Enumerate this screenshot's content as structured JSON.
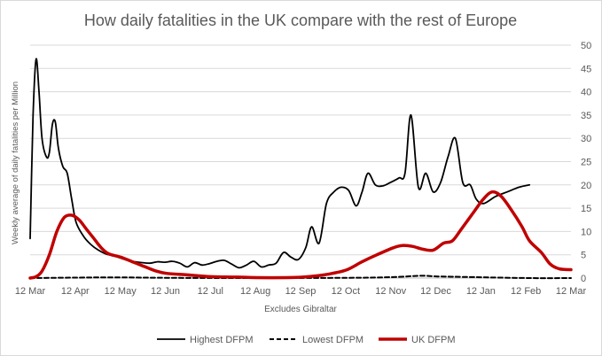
{
  "chart_data": {
    "type": "line",
    "title": "How daily fatalities in the UK compare with the rest of Europe",
    "xlabel": "Excludes Gibraltar",
    "ylabel": "Weekly average of daily fatalities per Million",
    "y_axis_position": "right",
    "ylim": [
      0,
      50
    ],
    "yticks": [
      0,
      5,
      10,
      15,
      20,
      25,
      30,
      35,
      40,
      45,
      50
    ],
    "xlim": [
      "2020-03-12",
      "2021-03-12"
    ],
    "xticks": [
      "12 Mar",
      "12 Apr",
      "12 May",
      "12 Jun",
      "12 Jul",
      "12 Aug",
      "12 Sep",
      "12 Oct",
      "12 Nov",
      "12 Dec",
      "12 Jan",
      "12 Feb",
      "12 Mar"
    ],
    "grid": true,
    "legend": "bottom",
    "series": [
      {
        "name": "Highest DFPM",
        "color": "#000000",
        "style": "solid",
        "points": [
          [
            "2020-03-12",
            8.5
          ],
          [
            "2020-03-14",
            35
          ],
          [
            "2020-03-16",
            47
          ],
          [
            "2020-03-18",
            40
          ],
          [
            "2020-03-20",
            30
          ],
          [
            "2020-03-23",
            26
          ],
          [
            "2020-03-25",
            27
          ],
          [
            "2020-03-27",
            33
          ],
          [
            "2020-03-29",
            33.5
          ],
          [
            "2020-03-31",
            28
          ],
          [
            "2020-04-03",
            24
          ],
          [
            "2020-04-06",
            22.5
          ],
          [
            "2020-04-09",
            17
          ],
          [
            "2020-04-12",
            12
          ],
          [
            "2020-04-17",
            9
          ],
          [
            "2020-04-22",
            7.2
          ],
          [
            "2020-04-27",
            6
          ],
          [
            "2020-05-02",
            5.2
          ],
          [
            "2020-05-07",
            4.8
          ],
          [
            "2020-05-12",
            4.3
          ],
          [
            "2020-05-17",
            3.8
          ],
          [
            "2020-05-22",
            3.5
          ],
          [
            "2020-05-27",
            3.3
          ],
          [
            "2020-06-01",
            3.2
          ],
          [
            "2020-06-06",
            3.5
          ],
          [
            "2020-06-11",
            3.4
          ],
          [
            "2020-06-16",
            3.6
          ],
          [
            "2020-06-21",
            3.2
          ],
          [
            "2020-06-26",
            2.4
          ],
          [
            "2020-07-01",
            3.3
          ],
          [
            "2020-07-06",
            2.8
          ],
          [
            "2020-07-11",
            3.1
          ],
          [
            "2020-07-16",
            3.6
          ],
          [
            "2020-07-21",
            3.8
          ],
          [
            "2020-07-26",
            3.0
          ],
          [
            "2020-07-31",
            2.2
          ],
          [
            "2020-08-05",
            2.8
          ],
          [
            "2020-08-10",
            3.6
          ],
          [
            "2020-08-15",
            2.4
          ],
          [
            "2020-08-20",
            2.8
          ],
          [
            "2020-08-25",
            3.2
          ],
          [
            "2020-08-30",
            5.5
          ],
          [
            "2020-09-04",
            4.5
          ],
          [
            "2020-09-09",
            4.0
          ],
          [
            "2020-09-14",
            6.5
          ],
          [
            "2020-09-18",
            11
          ],
          [
            "2020-09-23",
            7.5
          ],
          [
            "2020-09-28",
            16
          ],
          [
            "2020-10-03",
            18.5
          ],
          [
            "2020-10-08",
            19.5
          ],
          [
            "2020-10-13",
            18.8
          ],
          [
            "2020-10-18",
            15.5
          ],
          [
            "2020-10-22",
            18.5
          ],
          [
            "2020-10-26",
            22.5
          ],
          [
            "2020-10-31",
            20
          ],
          [
            "2020-11-05",
            19.8
          ],
          [
            "2020-11-10",
            20.5
          ],
          [
            "2020-11-16",
            21.5
          ],
          [
            "2020-11-20",
            22.5
          ],
          [
            "2020-11-24",
            35
          ],
          [
            "2020-11-29",
            19.5
          ],
          [
            "2020-12-04",
            22.5
          ],
          [
            "2020-12-09",
            18.5
          ],
          [
            "2020-12-14",
            20.5
          ],
          [
            "2020-12-19",
            26
          ],
          [
            "2020-12-24",
            30
          ],
          [
            "2020-12-29",
            20.5
          ],
          [
            "2021-01-03",
            20
          ],
          [
            "2021-01-07",
            17
          ],
          [
            "2021-01-12",
            16
          ],
          [
            "2021-01-20",
            17.5
          ],
          [
            "2021-01-28",
            18.5
          ],
          [
            "2021-02-05",
            19.5
          ],
          [
            "2021-02-12",
            20
          ]
        ]
      },
      {
        "name": "Lowest DFPM",
        "color": "#000000",
        "style": "dashed",
        "points": [
          [
            "2020-03-12",
            0
          ],
          [
            "2020-04-12",
            0.1
          ],
          [
            "2020-05-12",
            0.15
          ],
          [
            "2020-06-12",
            0.05
          ],
          [
            "2020-08-12",
            0
          ],
          [
            "2020-10-12",
            0.05
          ],
          [
            "2020-11-12",
            0.2
          ],
          [
            "2020-11-30",
            0.5
          ],
          [
            "2020-12-12",
            0.35
          ],
          [
            "2021-01-05",
            0.2
          ],
          [
            "2021-02-12",
            0
          ],
          [
            "2021-03-12",
            0
          ]
        ]
      },
      {
        "name": "UK DFPM",
        "color": "#c00000",
        "style": "solid",
        "points": [
          [
            "2020-03-12",
            0
          ],
          [
            "2020-03-16",
            0.3
          ],
          [
            "2020-03-20",
            1.5
          ],
          [
            "2020-03-25",
            5
          ],
          [
            "2020-03-30",
            10
          ],
          [
            "2020-04-04",
            13
          ],
          [
            "2020-04-09",
            13.5
          ],
          [
            "2020-04-14",
            12.5
          ],
          [
            "2020-04-19",
            10.5
          ],
          [
            "2020-04-24",
            8.5
          ],
          [
            "2020-04-29",
            6.5
          ],
          [
            "2020-05-04",
            5.2
          ],
          [
            "2020-05-12",
            4.5
          ],
          [
            "2020-05-20",
            3.5
          ],
          [
            "2020-05-28",
            2.5
          ],
          [
            "2020-06-05",
            1.5
          ],
          [
            "2020-06-12",
            1.0
          ],
          [
            "2020-06-25",
            0.7
          ],
          [
            "2020-07-12",
            0.3
          ],
          [
            "2020-07-30",
            0.2
          ],
          [
            "2020-08-12",
            0.1
          ],
          [
            "2020-09-01",
            0.1
          ],
          [
            "2020-09-12",
            0.2
          ],
          [
            "2020-09-22",
            0.5
          ],
          [
            "2020-10-02",
            1.0
          ],
          [
            "2020-10-12",
            1.8
          ],
          [
            "2020-10-22",
            3.5
          ],
          [
            "2020-11-01",
            5.0
          ],
          [
            "2020-11-12",
            6.5
          ],
          [
            "2020-11-18",
            7.0
          ],
          [
            "2020-11-25",
            6.8
          ],
          [
            "2020-12-02",
            6.2
          ],
          [
            "2020-12-09",
            6.0
          ],
          [
            "2020-12-16",
            7.5
          ],
          [
            "2020-12-22",
            8.0
          ],
          [
            "2020-12-28",
            10.5
          ],
          [
            "2021-01-05",
            14
          ],
          [
            "2021-01-12",
            17
          ],
          [
            "2021-01-18",
            18.5
          ],
          [
            "2021-01-24",
            17.5
          ],
          [
            "2021-01-31",
            14.5
          ],
          [
            "2021-02-07",
            11
          ],
          [
            "2021-02-12",
            8
          ],
          [
            "2021-02-20",
            5.5
          ],
          [
            "2021-02-26",
            3
          ],
          [
            "2021-03-04",
            2
          ],
          [
            "2021-03-12",
            1.8
          ]
        ]
      }
    ]
  }
}
